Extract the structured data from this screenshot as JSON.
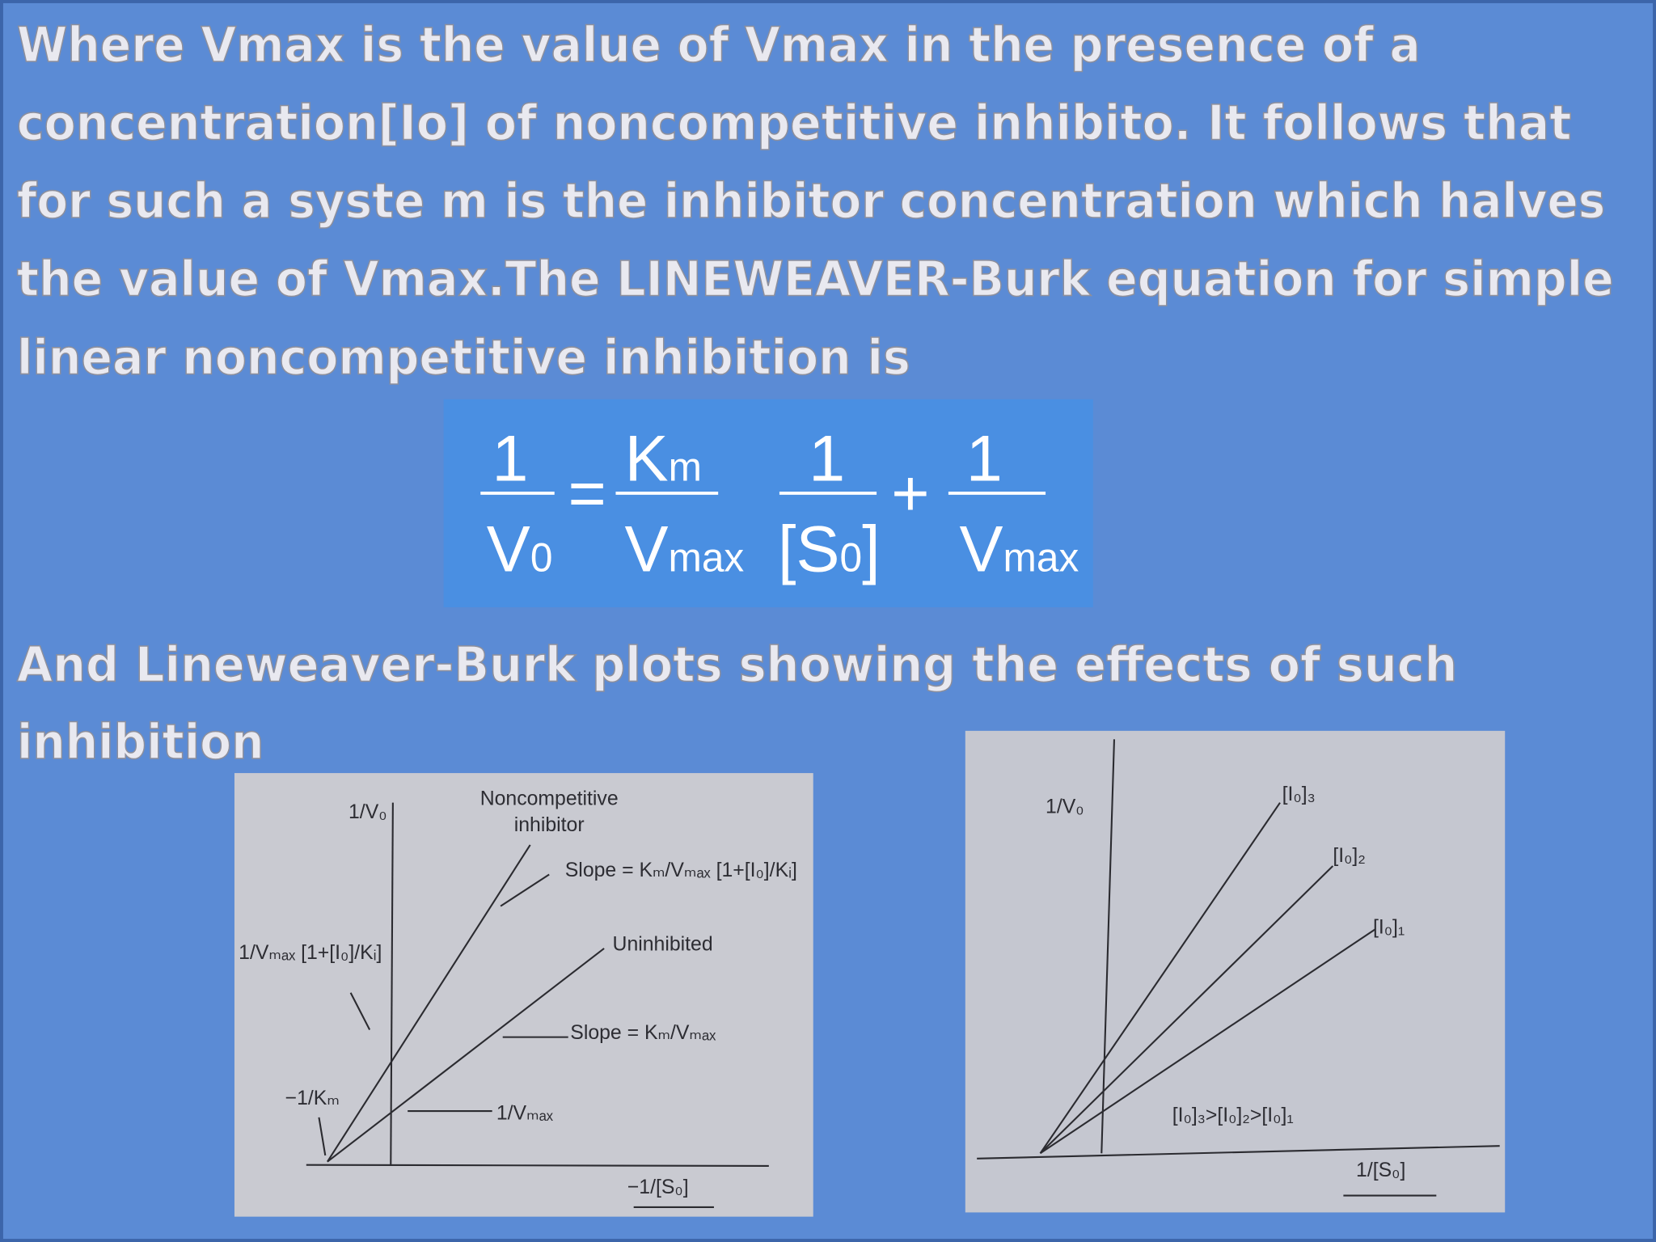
{
  "paragraph_1": {
    "lines": [
      "Where Vmax is the value of Vmax in the presence of a",
      "concentration[Io] of noncompetitive inhibito. It follows that",
      "for such a syste m is the inhibitor concentration which halves",
      "the value of Vmax.The LINEWEAVER-Burk equation for simple",
      "linear noncompetitive inhibition is"
    ]
  },
  "equation": {
    "lhs": {
      "numerator": "1",
      "denominator": {
        "base": "V",
        "sub": "0"
      }
    },
    "equals": "=",
    "term_1": {
      "numerator": {
        "base": "K",
        "sub": "m"
      },
      "denominator": {
        "base": "V",
        "sub": "max"
      }
    },
    "term_2": {
      "numerator": "1",
      "denominator": {
        "open": "[S",
        "sub": "0",
        "close": "]"
      }
    },
    "plus": "+",
    "term_3": {
      "numerator": "1",
      "denominator": {
        "base": "V",
        "sub": "max"
      }
    }
  },
  "paragraph_2": {
    "lines": [
      "And Lineweaver-Burk  plots showing the effects of such",
      "inhibition"
    ]
  },
  "figure_left": {
    "y_axis": "1/V₀",
    "x_axis": "−1/[S₀]",
    "noncompetitive": "Noncompetitive",
    "inhibitor": "inhibitor",
    "slope_inhibited": "Slope = Kₘ/Vₘₐₓ [1+[I₀]/Kᵢ]",
    "uninhibited": "Uninhibited",
    "slope_uninhibited": "Slope = Kₘ/Vₘₐₓ",
    "intercept_inhibited": "1/Vₘₐₓ [1+[I₀]/Kᵢ]",
    "x_intercept": "−1/Kₘ",
    "y_intercept": "1/Vₘₐₓ"
  },
  "figure_right": {
    "y_axis": "1/V₀",
    "x_axis": "1/[S₀]",
    "line_3": "[I₀]₃",
    "line_2": "[I₀]₂",
    "line_1": "[I₀]₁",
    "order": "[I₀]₃>[I₀]₂>[I₀]₁"
  }
}
